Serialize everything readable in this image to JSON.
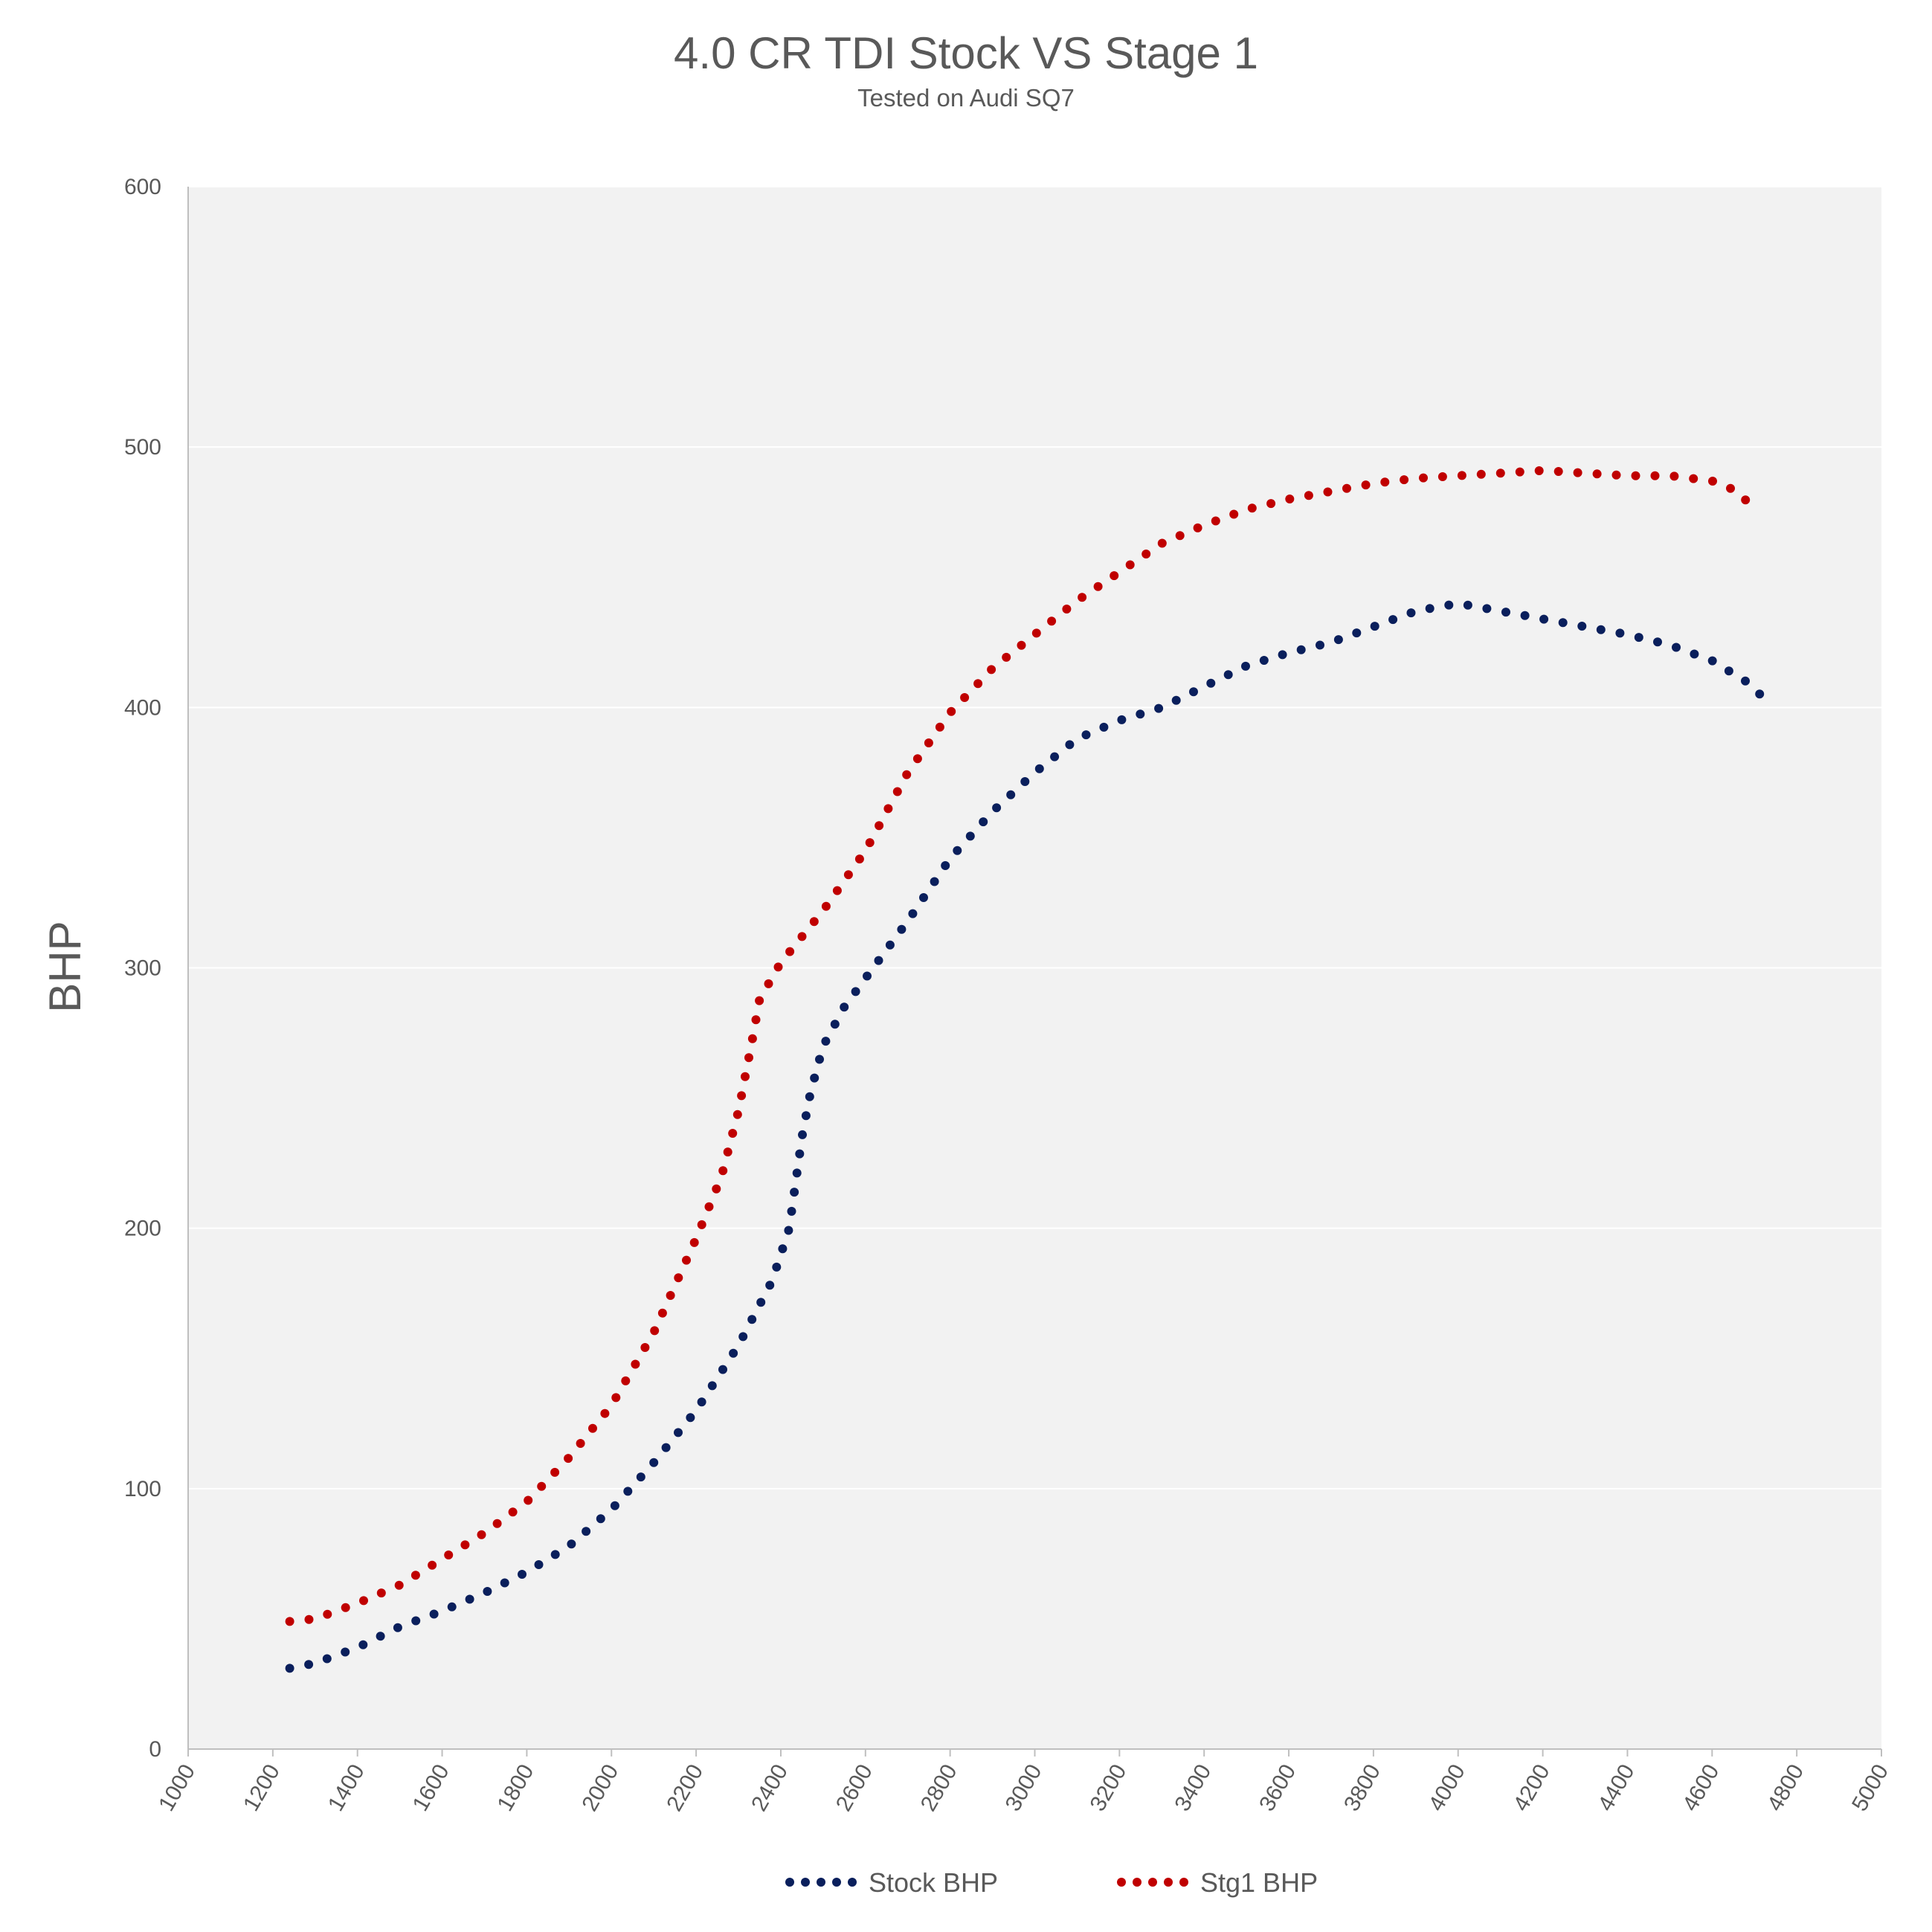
{
  "chart_data": {
    "type": "line",
    "title": "4.0 CR TDI Stock VS Stage 1",
    "subtitle": "Tested on Audi SQ7",
    "ylabel": "BHP",
    "xlabel": "",
    "xlim": [
      1000,
      5000
    ],
    "ylim": [
      0,
      600
    ],
    "x_ticks": [
      "1000",
      "1200",
      "1400",
      "1600",
      "1800",
      "2000",
      "2200",
      "2400",
      "2600",
      "2800",
      "3000",
      "3200",
      "3400",
      "3600",
      "3800",
      "4000",
      "4200",
      "4400",
      "4600",
      "4800",
      "5000"
    ],
    "y_ticks": [
      "0",
      "100",
      "200",
      "300",
      "400",
      "500",
      "600"
    ],
    "grid": "horizontal",
    "legend_position": "bottom",
    "series": [
      {
        "name": "Stock BHP",
        "color": "#0a1f5c",
        "points": [
          [
            1240,
            31
          ],
          [
            1300,
            33
          ],
          [
            1400,
            39
          ],
          [
            1500,
            47
          ],
          [
            1600,
            53
          ],
          [
            1700,
            60
          ],
          [
            1800,
            68
          ],
          [
            1900,
            78
          ],
          [
            2000,
            92
          ],
          [
            2100,
            110
          ],
          [
            2200,
            130
          ],
          [
            2300,
            155
          ],
          [
            2380,
            180
          ],
          [
            2420,
            200
          ],
          [
            2450,
            235
          ],
          [
            2470,
            252
          ],
          [
            2500,
            270
          ],
          [
            2550,
            285
          ],
          [
            2600,
            296
          ],
          [
            2700,
            318
          ],
          [
            2800,
            342
          ],
          [
            2900,
            360
          ],
          [
            3000,
            375
          ],
          [
            3100,
            388
          ],
          [
            3200,
            395
          ],
          [
            3300,
            400
          ],
          [
            3400,
            408
          ],
          [
            3500,
            416
          ],
          [
            3600,
            421
          ],
          [
            3700,
            425
          ],
          [
            3800,
            431
          ],
          [
            3900,
            437
          ],
          [
            4000,
            440
          ],
          [
            4100,
            437
          ],
          [
            4200,
            434
          ],
          [
            4300,
            431
          ],
          [
            4400,
            428
          ],
          [
            4500,
            424
          ],
          [
            4600,
            418
          ],
          [
            4680,
            410
          ],
          [
            4740,
            401
          ]
        ]
      },
      {
        "name": "Stg1 BHP",
        "color": "#c00000",
        "points": [
          [
            1240,
            49
          ],
          [
            1300,
            50
          ],
          [
            1400,
            56
          ],
          [
            1500,
            63
          ],
          [
            1600,
            73
          ],
          [
            1700,
            83
          ],
          [
            1800,
            95
          ],
          [
            1900,
            112
          ],
          [
            2000,
            132
          ],
          [
            2100,
            160
          ],
          [
            2200,
            196
          ],
          [
            2260,
            220
          ],
          [
            2300,
            245
          ],
          [
            2330,
            270
          ],
          [
            2350,
            288
          ],
          [
            2400,
            302
          ],
          [
            2450,
            312
          ],
          [
            2500,
            322
          ],
          [
            2600,
            345
          ],
          [
            2700,
            375
          ],
          [
            2800,
            398
          ],
          [
            2900,
            415
          ],
          [
            3000,
            428
          ],
          [
            3100,
            441
          ],
          [
            3200,
            452
          ],
          [
            3300,
            463
          ],
          [
            3400,
            470
          ],
          [
            3500,
            476
          ],
          [
            3600,
            480
          ],
          [
            3700,
            483
          ],
          [
            3800,
            486
          ],
          [
            3900,
            488
          ],
          [
            4000,
            489
          ],
          [
            4100,
            490
          ],
          [
            4200,
            491
          ],
          [
            4300,
            490
          ],
          [
            4400,
            489
          ],
          [
            4500,
            489
          ],
          [
            4600,
            487
          ],
          [
            4660,
            483
          ],
          [
            4700,
            476
          ]
        ]
      }
    ]
  }
}
